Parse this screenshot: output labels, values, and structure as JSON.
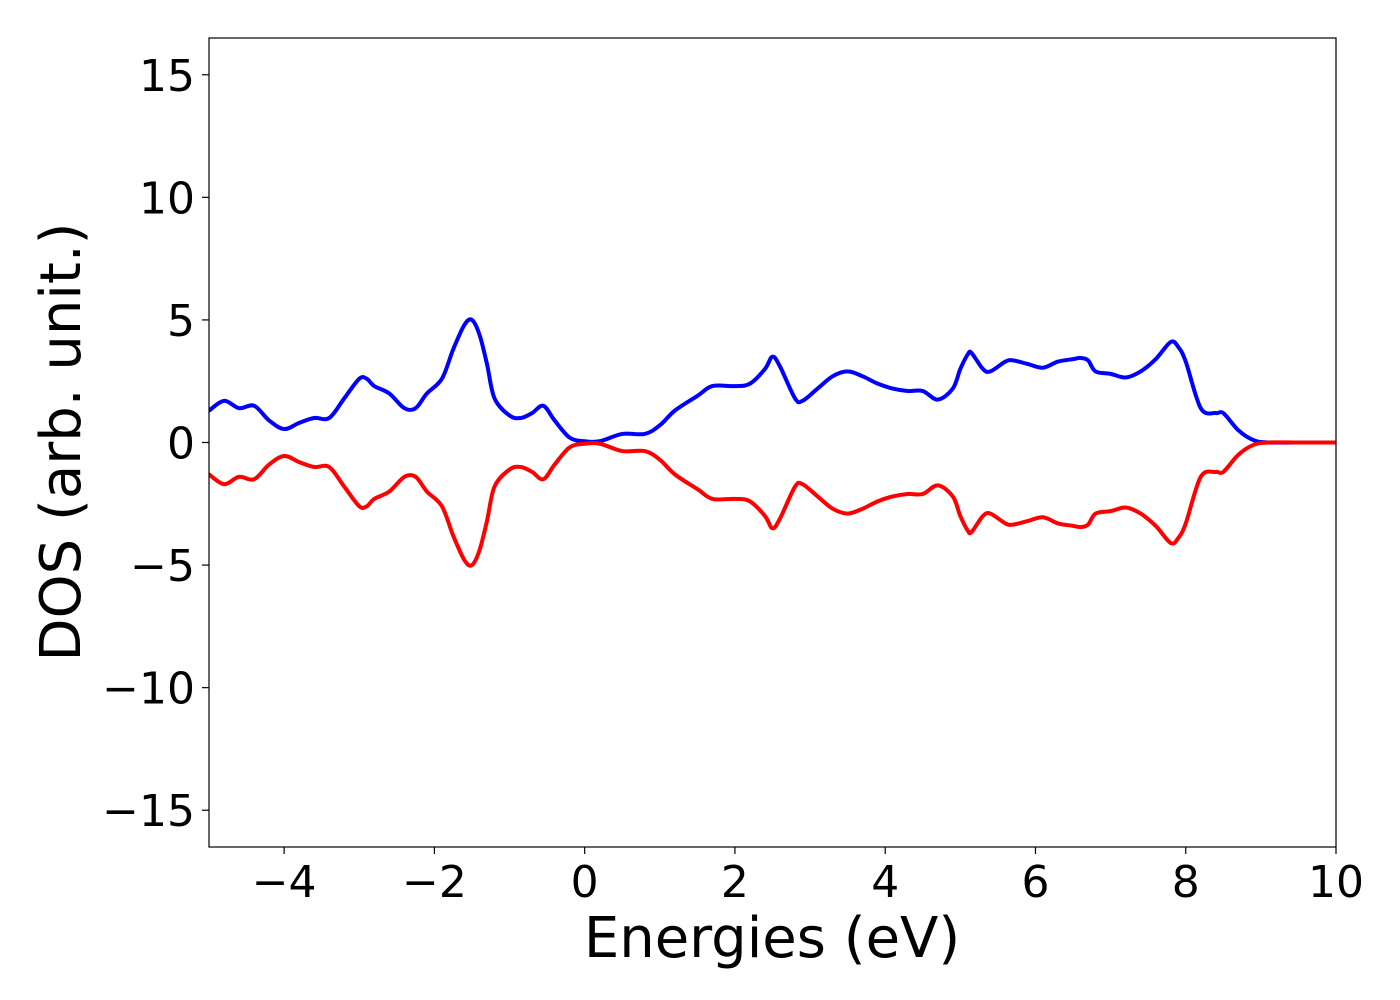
{
  "chart_data": {
    "type": "line",
    "title": "",
    "xlabel": "Energies (eV)",
    "ylabel": "DOS (arb. unit.)",
    "xlim": [
      -5,
      10
    ],
    "ylim": [
      -16.5,
      16.5
    ],
    "x_ticks": [
      -4,
      -2,
      0,
      2,
      4,
      6,
      8,
      10
    ],
    "y_ticks": [
      -15,
      -10,
      -5,
      0,
      5,
      10,
      15
    ],
    "x_tick_labels": [
      "−4",
      "−2",
      "0",
      "2",
      "4",
      "6",
      "8",
      "10"
    ],
    "y_tick_labels": [
      "−15",
      "−10",
      "−5",
      "0",
      "5",
      "10",
      "15"
    ],
    "grid": false,
    "legend": "none",
    "series": [
      {
        "color": "#0000ff",
        "x": [
          -5.0,
          -4.8,
          -4.6,
          -4.4,
          -4.2,
          -4.0,
          -3.8,
          -3.6,
          -3.4,
          -3.2,
          -3.0,
          -2.9,
          -2.8,
          -2.6,
          -2.4,
          -2.25,
          -2.1,
          -1.9,
          -1.75,
          -1.6,
          -1.5,
          -1.4,
          -1.3,
          -1.2,
          -1.0,
          -0.85,
          -0.7,
          -0.55,
          -0.4,
          -0.2,
          0.0,
          0.2,
          0.5,
          0.8,
          1.0,
          1.2,
          1.5,
          1.7,
          2.0,
          2.2,
          2.4,
          2.5,
          2.6,
          2.8,
          2.9,
          3.1,
          3.3,
          3.5,
          3.7,
          3.9,
          4.1,
          4.3,
          4.5,
          4.7,
          4.9,
          5.0,
          5.1,
          5.15,
          5.3,
          5.4,
          5.6,
          5.7,
          5.9,
          6.1,
          6.3,
          6.5,
          6.6,
          6.7,
          6.8,
          7.0,
          7.2,
          7.4,
          7.6,
          7.8,
          7.9,
          8.0,
          8.2,
          8.4,
          8.5,
          8.7,
          8.9,
          9.1,
          9.5,
          10.0
        ],
        "y": [
          1.3,
          1.7,
          1.4,
          1.5,
          0.9,
          0.55,
          0.8,
          1.0,
          1.0,
          1.8,
          2.6,
          2.6,
          2.3,
          2.0,
          1.4,
          1.4,
          2.0,
          2.6,
          3.8,
          4.8,
          5.0,
          4.4,
          3.2,
          1.8,
          1.1,
          1.0,
          1.2,
          1.5,
          0.9,
          0.2,
          0.05,
          0.05,
          0.35,
          0.35,
          0.7,
          1.3,
          1.9,
          2.3,
          2.3,
          2.4,
          3.0,
          3.5,
          3.1,
          1.8,
          1.7,
          2.2,
          2.7,
          2.9,
          2.7,
          2.4,
          2.2,
          2.1,
          2.1,
          1.75,
          2.2,
          3.0,
          3.6,
          3.65,
          3.0,
          2.9,
          3.3,
          3.35,
          3.2,
          3.05,
          3.3,
          3.4,
          3.45,
          3.35,
          2.9,
          2.8,
          2.65,
          2.9,
          3.4,
          4.1,
          3.9,
          3.3,
          1.4,
          1.2,
          1.2,
          0.5,
          0.1,
          0.0,
          0.0,
          0.0
        ]
      },
      {
        "color": "#ff0000",
        "x": [
          -5.0,
          -4.8,
          -4.6,
          -4.4,
          -4.2,
          -4.0,
          -3.8,
          -3.6,
          -3.4,
          -3.2,
          -3.0,
          -2.9,
          -2.8,
          -2.6,
          -2.4,
          -2.25,
          -2.1,
          -1.9,
          -1.75,
          -1.6,
          -1.5,
          -1.4,
          -1.3,
          -1.2,
          -1.0,
          -0.85,
          -0.7,
          -0.55,
          -0.4,
          -0.2,
          0.0,
          0.2,
          0.5,
          0.8,
          1.0,
          1.2,
          1.5,
          1.7,
          2.0,
          2.2,
          2.4,
          2.5,
          2.6,
          2.8,
          2.9,
          3.1,
          3.3,
          3.5,
          3.7,
          3.9,
          4.1,
          4.3,
          4.5,
          4.7,
          4.9,
          5.0,
          5.1,
          5.15,
          5.3,
          5.4,
          5.6,
          5.7,
          5.9,
          6.1,
          6.3,
          6.5,
          6.6,
          6.7,
          6.8,
          7.0,
          7.2,
          7.4,
          7.6,
          7.8,
          7.9,
          8.0,
          8.2,
          8.4,
          8.5,
          8.7,
          8.9,
          9.1,
          9.5,
          10.0
        ],
        "y": [
          -1.3,
          -1.7,
          -1.4,
          -1.5,
          -0.9,
          -0.55,
          -0.8,
          -1.0,
          -1.0,
          -1.8,
          -2.6,
          -2.6,
          -2.3,
          -2.0,
          -1.4,
          -1.4,
          -2.0,
          -2.6,
          -3.8,
          -4.8,
          -5.0,
          -4.4,
          -3.2,
          -1.8,
          -1.1,
          -1.0,
          -1.2,
          -1.5,
          -0.9,
          -0.2,
          -0.05,
          -0.05,
          -0.35,
          -0.35,
          -0.7,
          -1.3,
          -1.9,
          -2.3,
          -2.3,
          -2.4,
          -3.0,
          -3.5,
          -3.1,
          -1.8,
          -1.7,
          -2.2,
          -2.7,
          -2.9,
          -2.7,
          -2.4,
          -2.2,
          -2.1,
          -2.1,
          -1.75,
          -2.2,
          -3.0,
          -3.6,
          -3.65,
          -3.0,
          -2.9,
          -3.3,
          -3.35,
          -3.2,
          -3.05,
          -3.3,
          -3.4,
          -3.45,
          -3.35,
          -2.9,
          -2.8,
          -2.65,
          -2.9,
          -3.4,
          -4.1,
          -3.9,
          -3.3,
          -1.4,
          -1.2,
          -1.2,
          -0.5,
          -0.1,
          0.0,
          0.0,
          0.0
        ]
      }
    ]
  }
}
